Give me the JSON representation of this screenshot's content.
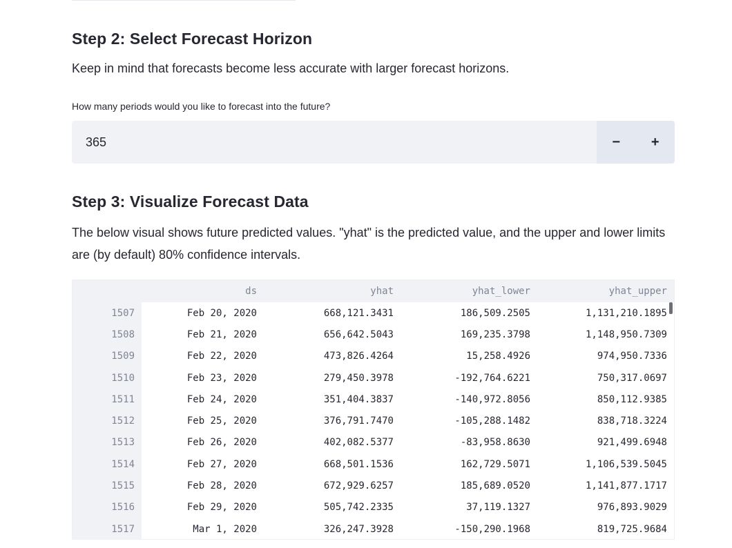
{
  "step2": {
    "title": "Step 2: Select Forecast Horizon",
    "description": "Keep in mind that forecasts become less accurate with larger forecast horizons.",
    "input_label": "How many periods would you like to forecast into the future?",
    "input_value": "365",
    "decrement_label": "−",
    "increment_label": "+"
  },
  "step3": {
    "title": "Step 3: Visualize Forecast Data",
    "description": "The below visual shows future predicted values. \"yhat\" is the predicted value, and the upper and lower limits are (by default) 80% confidence intervals."
  },
  "table": {
    "columns": [
      "",
      "ds",
      "yhat",
      "yhat_lower",
      "yhat_upper"
    ],
    "rows": [
      {
        "idx": "1507",
        "ds": "Feb 20, 2020",
        "yhat": "668,121.3431",
        "yhat_lower": "186,509.2505",
        "yhat_upper": "1,131,210.1895"
      },
      {
        "idx": "1508",
        "ds": "Feb 21, 2020",
        "yhat": "656,642.5043",
        "yhat_lower": "169,235.3798",
        "yhat_upper": "1,148,950.7309"
      },
      {
        "idx": "1509",
        "ds": "Feb 22, 2020",
        "yhat": "473,826.4264",
        "yhat_lower": "15,258.4926",
        "yhat_upper": "974,950.7336"
      },
      {
        "idx": "1510",
        "ds": "Feb 23, 2020",
        "yhat": "279,450.3978",
        "yhat_lower": "-192,764.6221",
        "yhat_upper": "750,317.0697"
      },
      {
        "idx": "1511",
        "ds": "Feb 24, 2020",
        "yhat": "351,404.3837",
        "yhat_lower": "-140,972.8056",
        "yhat_upper": "850,112.9385"
      },
      {
        "idx": "1512",
        "ds": "Feb 25, 2020",
        "yhat": "376,791.7470",
        "yhat_lower": "-105,288.1482",
        "yhat_upper": "838,718.3224"
      },
      {
        "idx": "1513",
        "ds": "Feb 26, 2020",
        "yhat": "402,082.5377",
        "yhat_lower": "-83,958.8630",
        "yhat_upper": "921,499.6948"
      },
      {
        "idx": "1514",
        "ds": "Feb 27, 2020",
        "yhat": "668,501.1536",
        "yhat_lower": "162,729.5071",
        "yhat_upper": "1,106,539.5045"
      },
      {
        "idx": "1515",
        "ds": "Feb 28, 2020",
        "yhat": "672,929.6257",
        "yhat_lower": "185,689.0520",
        "yhat_upper": "1,141,877.1717"
      },
      {
        "idx": "1516",
        "ds": "Feb 29, 2020",
        "yhat": "505,742.2335",
        "yhat_lower": "37,119.1327",
        "yhat_upper": "976,893.9029"
      },
      {
        "idx": "1517",
        "ds": "Mar 1, 2020",
        "yhat": "326,247.3928",
        "yhat_lower": "-150,290.1968",
        "yhat_upper": "819,725.9684"
      }
    ]
  }
}
